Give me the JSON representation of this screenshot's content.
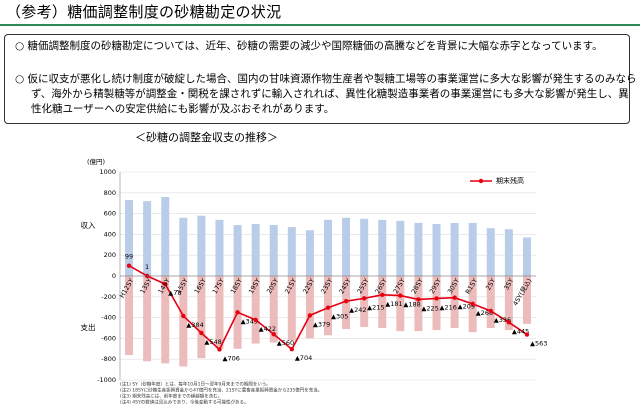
{
  "header": {
    "title": "（参考）糖価調整制度の砂糖勘定の状況"
  },
  "bullets": [
    {
      "mark": "○",
      "text": "糖価調整制度の砂糖勘定については、近年、砂糖の需要の減少や国際糖価の高騰などを背景に大幅な赤字となっています。"
    },
    {
      "mark": "○",
      "text": "仮に収支が悪化し続け制度が破綻した場合、国内の甘味資源作物生産者や製糖工場等の事業運営に多大な影響が発生するのみならず、海外から精製糖等が調整金・関税を課されずに輸入されれば、異性化糖製造事業者の事業運営にも多大な影響が発生し、異性化糖ユーザーへの安定供給にも影響が及ぶおそれがあります。"
    }
  ],
  "chart_data": {
    "type": "bar",
    "title": "＜砂糖の調整金収支の推移＞",
    "y_unit": "(億円)",
    "categories": [
      "H12SY",
      "13SY",
      "14SY",
      "15SY",
      "16SY",
      "17SY",
      "18SY",
      "19SY",
      "20SY",
      "21SY",
      "22SY",
      "23SY",
      "24SY",
      "25SY",
      "26SY",
      "27SY",
      "28SY",
      "29SY",
      "30SY",
      "R1SY",
      "2SY",
      "3SY",
      "4SY(見込)"
    ],
    "series": [
      {
        "name": "収入",
        "color": "#b9cde8",
        "values": [
          730,
          720,
          760,
          560,
          580,
          540,
          490,
          500,
          490,
          470,
          440,
          540,
          560,
          550,
          540,
          530,
          510,
          500,
          510,
          510,
          460,
          450,
          370
        ]
      },
      {
        "name": "支出",
        "color": "#ecbcbc",
        "values": [
          -760,
          -820,
          -840,
          -870,
          -790,
          -700,
          -700,
          -650,
          -640,
          -620,
          -600,
          -570,
          -510,
          -490,
          -500,
          -530,
          -530,
          -520,
          -500,
          -540,
          -500,
          -520,
          -460
        ]
      },
      {
        "name": "期末残高",
        "type": "line",
        "color": "#e60012",
        "values": [
          99,
          1,
          -78,
          -384,
          -548,
          -706,
          -349,
          -422,
          -560,
          -704,
          -379,
          -305,
          -242,
          -215,
          -181,
          -188,
          -225,
          -216,
          -209,
          -268,
          -336,
          -445,
          -563
        ],
        "value_labels": [
          "99",
          "1",
          "▲78",
          "▲384",
          "▲548",
          "▲706",
          "▲349",
          "▲422",
          "▲560",
          "▲704",
          "▲379",
          "▲305",
          "▲242",
          "▲215",
          "▲181",
          "▲188",
          "▲225",
          "▲216",
          "▲209",
          "▲268",
          "▲336",
          "▲445",
          "▲563"
        ]
      }
    ],
    "ylim": [
      -1000,
      1000
    ],
    "yticks": [
      1000,
      800,
      600,
      400,
      200,
      0,
      -200,
      -400,
      -600,
      -800,
      -1000
    ],
    "legend": "upper right",
    "notes": [
      "(注1) SY（砂糖年度）とは、毎年10月1日～翌年9月末までの期間をいう。",
      "(注2) 18SYに砂糖生産振興資金から47億円を充当、21SYに農畜産業振興資金から235億円を充当。",
      "(注3) 期末残高には、前年度までの繰越額を含む。",
      "(注4) 4SYの数値は見込みであり、今後変動する可能性がある。"
    ]
  }
}
